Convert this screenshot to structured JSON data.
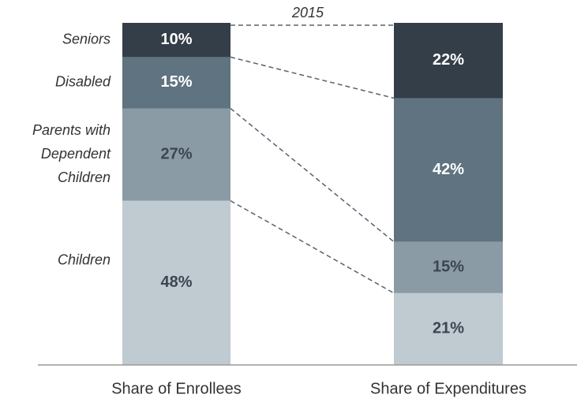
{
  "chart_data": {
    "type": "bar",
    "stacked": true,
    "annotation": "2015",
    "categories": [
      "Share of Enrollees",
      "Share of Expenditures"
    ],
    "ylim": [
      0,
      100
    ],
    "series": [
      {
        "name": "Children",
        "color": "#c0cad1",
        "values": [
          48,
          21
        ],
        "value_labels": [
          "48%",
          "21%"
        ]
      },
      {
        "name": "Parents with\nDependent\nChildren",
        "color": "#8a9ba6",
        "values": [
          27,
          15
        ],
        "value_labels": [
          "27%",
          "15%"
        ]
      },
      {
        "name": "Disabled",
        "color": "#5f7380",
        "values": [
          15,
          42
        ],
        "value_labels": [
          "15%",
          "42%"
        ]
      },
      {
        "name": "Seniors",
        "color": "#343e48",
        "values": [
          10,
          22
        ],
        "value_labels": [
          "10%",
          "22%"
        ]
      }
    ]
  }
}
